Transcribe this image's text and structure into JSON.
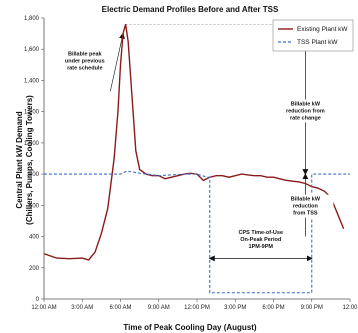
{
  "chart_data": {
    "type": "line",
    "title": "Electric Demand Profiles Before and After TSS",
    "xlabel": "Time of Peak Cooling Day (August)",
    "ylabel_lines": [
      "Central Plant kW Demand",
      "(Chillers, Pumps, Cooling Towers)"
    ],
    "xlim": [
      0,
      24
    ],
    "ylim": [
      0,
      1800
    ],
    "x_ticks": [
      {
        "value": 0,
        "label": "12:00 AM"
      },
      {
        "value": 3,
        "label": "3:00 AM"
      },
      {
        "value": 6,
        "label": "6:00 AM"
      },
      {
        "value": 9,
        "label": "9:00 AM"
      },
      {
        "value": 12,
        "label": "12:00 PM"
      },
      {
        "value": 15,
        "label": "3:00 PM"
      },
      {
        "value": 18,
        "label": "6:00 PM"
      },
      {
        "value": 21,
        "label": "9:00 PM"
      },
      {
        "value": 24,
        "label": "12:00"
      }
    ],
    "y_ticks": [
      {
        "value": 0,
        "label": "0"
      },
      {
        "value": 200,
        "label": "200"
      },
      {
        "value": 400,
        "label": "400"
      },
      {
        "value": 600,
        "label": "600"
      },
      {
        "value": 800,
        "label": "800"
      },
      {
        "value": 1000,
        "label": "1,000"
      },
      {
        "value": 1200,
        "label": "1,200"
      },
      {
        "value": 1400,
        "label": "1,400"
      },
      {
        "value": 1600,
        "label": "1,600"
      },
      {
        "value": 1800,
        "label": "1,800"
      }
    ],
    "legend_position": "top-right",
    "series": [
      {
        "name": "Existing Plant kW",
        "color": "#8B1A1A",
        "style": "solid",
        "points": [
          [
            0,
            290
          ],
          [
            1,
            262
          ],
          [
            2,
            258
          ],
          [
            3,
            262
          ],
          [
            3.5,
            250
          ],
          [
            4,
            300
          ],
          [
            4.5,
            420
          ],
          [
            5,
            580
          ],
          [
            5.5,
            900
          ],
          [
            5.8,
            1200
          ],
          [
            6,
            1500
          ],
          [
            6.2,
            1700
          ],
          [
            6.4,
            1760
          ],
          [
            6.6,
            1650
          ],
          [
            6.9,
            1300
          ],
          [
            7.2,
            950
          ],
          [
            7.5,
            830
          ],
          [
            8,
            800
          ],
          [
            8.5,
            790
          ],
          [
            9,
            790
          ],
          [
            9.5,
            770
          ],
          [
            10,
            780
          ],
          [
            10.5,
            790
          ],
          [
            11,
            800
          ],
          [
            11.5,
            805
          ],
          [
            12,
            800
          ],
          [
            12.5,
            760
          ],
          [
            13,
            780
          ],
          [
            13.5,
            790
          ],
          [
            14,
            790
          ],
          [
            14.5,
            780
          ],
          [
            15,
            790
          ],
          [
            15.5,
            800
          ],
          [
            16,
            795
          ],
          [
            16.5,
            790
          ],
          [
            17,
            790
          ],
          [
            17.5,
            780
          ],
          [
            18,
            780
          ],
          [
            18.5,
            770
          ],
          [
            19,
            760
          ],
          [
            19.5,
            755
          ],
          [
            20,
            750
          ],
          [
            20.5,
            740
          ],
          [
            21,
            720
          ],
          [
            21.5,
            710
          ],
          [
            22,
            690
          ],
          [
            22.5,
            650
          ],
          [
            23,
            550
          ],
          [
            23.5,
            450
          ]
        ]
      },
      {
        "name": "TSS Plant kW",
        "color": "#3A6FD0",
        "style": "dashed",
        "points": [
          [
            0,
            800
          ],
          [
            3,
            800
          ],
          [
            6,
            800
          ],
          [
            6.5,
            820
          ],
          [
            7.2,
            810
          ],
          [
            8,
            800
          ],
          [
            9,
            790
          ],
          [
            10,
            795
          ],
          [
            11,
            800
          ],
          [
            12,
            800
          ],
          [
            12.8,
            780
          ],
          [
            13,
            780
          ],
          [
            13,
            40
          ],
          [
            21,
            40
          ],
          [
            21,
            800
          ],
          [
            24,
            800
          ]
        ]
      }
    ],
    "annotations": {
      "billable_peak": [
        "Billable peak",
        "under previous",
        "rate schedule"
      ],
      "reduction_rate": [
        "Billable kW",
        "reduction from",
        "rate change"
      ],
      "reduction_tss": [
        "Billable kW",
        "reduction",
        "from TSS"
      ],
      "cps_period": [
        "CPS Time-of-Use",
        "On-Peak Period",
        "1PM-9PM"
      ]
    },
    "reference_values": {
      "previous_peak": 1760,
      "rate_change_level": 800,
      "tss_level": 720,
      "cps_start": 13,
      "cps_end": 21,
      "cps_arrow_level": 260
    }
  }
}
